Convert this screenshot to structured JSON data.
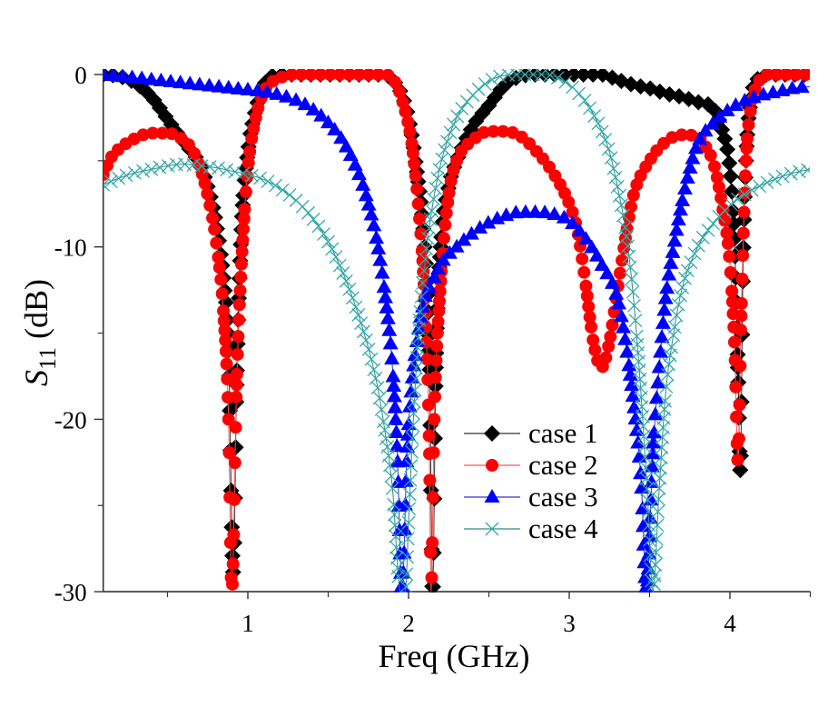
{
  "chart_data": {
    "type": "line",
    "title": "",
    "xlabel": "Freq (GHz)",
    "ylabel": {
      "base": "S",
      "subscript": "11",
      "suffix": " (dB)"
    },
    "xlim": [
      0.1,
      4.5
    ],
    "ylim": [
      -30,
      0
    ],
    "x_ticks": [
      1,
      2,
      3,
      4
    ],
    "x_minor_ticks": [
      0.5,
      1.5,
      2.5,
      3.5,
      4.5
    ],
    "y_ticks": [
      0,
      -10,
      -20,
      -30
    ],
    "y_minor_ticks": [
      -5,
      -15,
      -25
    ],
    "grid": false,
    "legend_position": "bottom-center",
    "series": [
      {
        "name": "case 1",
        "color": "#000000",
        "line_color": "#333333",
        "marker": "diamond",
        "points": [
          [
            0.1,
            0
          ],
          [
            0.2,
            -0.1
          ],
          [
            0.3,
            -0.5
          ],
          [
            0.4,
            -1.3
          ],
          [
            0.5,
            -2.6
          ],
          [
            0.6,
            -3.9
          ],
          [
            0.7,
            -5.2
          ],
          [
            0.75,
            -6.5
          ],
          [
            0.8,
            -8.5
          ],
          [
            0.85,
            -12
          ],
          [
            0.88,
            -16
          ],
          [
            0.91,
            -29
          ],
          [
            0.93,
            -18
          ],
          [
            0.96,
            -9
          ],
          [
            1.0,
            -4.5
          ],
          [
            1.05,
            -2
          ],
          [
            1.1,
            -0.6
          ],
          [
            1.2,
            0
          ],
          [
            1.85,
            0
          ],
          [
            1.9,
            -0.3
          ],
          [
            1.95,
            -1
          ],
          [
            2.0,
            -2.5
          ],
          [
            2.05,
            -5.5
          ],
          [
            2.1,
            -10
          ],
          [
            2.13,
            -16
          ],
          [
            2.15,
            -30
          ],
          [
            2.17,
            -17
          ],
          [
            2.2,
            -10
          ],
          [
            2.25,
            -6.5
          ],
          [
            2.3,
            -5
          ],
          [
            2.4,
            -3
          ],
          [
            2.5,
            -1.8
          ],
          [
            2.6,
            -0.6
          ],
          [
            2.7,
            -0.1
          ],
          [
            2.8,
            0
          ],
          [
            3.2,
            0
          ],
          [
            3.3,
            -0.3
          ],
          [
            3.4,
            -0.6
          ],
          [
            3.5,
            -0.8
          ],
          [
            3.6,
            -1.1
          ],
          [
            3.7,
            -1.3
          ],
          [
            3.8,
            -1.6
          ],
          [
            3.9,
            -2
          ],
          [
            3.95,
            -3.2
          ],
          [
            4.0,
            -5.5
          ],
          [
            4.03,
            -10
          ],
          [
            4.05,
            -17
          ],
          [
            4.065,
            -23
          ],
          [
            4.08,
            -12
          ],
          [
            4.1,
            -5
          ],
          [
            4.13,
            -1.5
          ],
          [
            4.18,
            -0.2
          ],
          [
            4.25,
            0
          ],
          [
            4.5,
            0
          ]
        ]
      },
      {
        "name": "case 2",
        "color": "#ff0000",
        "line_color": "#ff5555",
        "marker": "circle",
        "points": [
          [
            0.1,
            -5.8
          ],
          [
            0.15,
            -4.8
          ],
          [
            0.2,
            -4.3
          ],
          [
            0.3,
            -3.7
          ],
          [
            0.4,
            -3.4
          ],
          [
            0.5,
            -3.4
          ],
          [
            0.6,
            -3.8
          ],
          [
            0.65,
            -4.3
          ],
          [
            0.7,
            -5.3
          ],
          [
            0.75,
            -7
          ],
          [
            0.8,
            -9.5
          ],
          [
            0.85,
            -14
          ],
          [
            0.88,
            -20
          ],
          [
            0.9,
            -30
          ],
          [
            0.93,
            -18
          ],
          [
            0.96,
            -11
          ],
          [
            1.0,
            -5.5
          ],
          [
            1.05,
            -2.5
          ],
          [
            1.1,
            -1
          ],
          [
            1.2,
            -0.2
          ],
          [
            1.3,
            0
          ],
          [
            1.85,
            0
          ],
          [
            1.92,
            -0.5
          ],
          [
            1.97,
            -1.8
          ],
          [
            2.02,
            -4
          ],
          [
            2.06,
            -7.5
          ],
          [
            2.1,
            -13
          ],
          [
            2.13,
            -22
          ],
          [
            2.14,
            -30
          ],
          [
            2.16,
            -20
          ],
          [
            2.2,
            -12
          ],
          [
            2.25,
            -7
          ],
          [
            2.3,
            -5
          ],
          [
            2.4,
            -3.8
          ],
          [
            2.5,
            -3.3
          ],
          [
            2.6,
            -3.3
          ],
          [
            2.7,
            -3.6
          ],
          [
            2.8,
            -4.5
          ],
          [
            2.9,
            -5.7
          ],
          [
            3.0,
            -7.5
          ],
          [
            3.05,
            -9
          ],
          [
            3.1,
            -12
          ],
          [
            3.15,
            -15.5
          ],
          [
            3.2,
            -17
          ],
          [
            3.25,
            -15.5
          ],
          [
            3.3,
            -12.5
          ],
          [
            3.35,
            -9.5
          ],
          [
            3.4,
            -7
          ],
          [
            3.5,
            -5
          ],
          [
            3.6,
            -3.9
          ],
          [
            3.7,
            -3.5
          ],
          [
            3.8,
            -3.6
          ],
          [
            3.85,
            -4.2
          ],
          [
            3.9,
            -5.2
          ],
          [
            3.95,
            -7.5
          ],
          [
            4.0,
            -11
          ],
          [
            4.03,
            -16
          ],
          [
            4.05,
            -22.5
          ],
          [
            4.07,
            -14
          ],
          [
            4.1,
            -5
          ],
          [
            4.13,
            -2
          ],
          [
            4.18,
            -0.4
          ],
          [
            4.25,
            0
          ],
          [
            4.5,
            0
          ]
        ]
      },
      {
        "name": "case 3",
        "color": "#0000ff",
        "line_color": "#3333cc",
        "marker": "triangle",
        "points": [
          [
            0.1,
            0
          ],
          [
            0.3,
            -0.2
          ],
          [
            0.5,
            -0.4
          ],
          [
            0.7,
            -0.6
          ],
          [
            0.9,
            -0.8
          ],
          [
            1.1,
            -1.0
          ],
          [
            1.2,
            -1.2
          ],
          [
            1.3,
            -1.5
          ],
          [
            1.4,
            -2
          ],
          [
            1.5,
            -2.8
          ],
          [
            1.6,
            -4
          ],
          [
            1.7,
            -6
          ],
          [
            1.75,
            -7.5
          ],
          [
            1.8,
            -9.5
          ],
          [
            1.85,
            -12.5
          ],
          [
            1.9,
            -17
          ],
          [
            1.93,
            -22
          ],
          [
            1.96,
            -30
          ],
          [
            1.99,
            -22
          ],
          [
            2.02,
            -18
          ],
          [
            2.06,
            -15
          ],
          [
            2.1,
            -13
          ],
          [
            2.15,
            -12
          ],
          [
            2.2,
            -11
          ],
          [
            2.3,
            -10
          ],
          [
            2.4,
            -9.2
          ],
          [
            2.5,
            -8.6
          ],
          [
            2.6,
            -8.2
          ],
          [
            2.7,
            -8.0
          ],
          [
            2.8,
            -8.0
          ],
          [
            2.9,
            -8.1
          ],
          [
            3.0,
            -8.5
          ],
          [
            3.1,
            -9.5
          ],
          [
            3.2,
            -11
          ],
          [
            3.3,
            -13
          ],
          [
            3.35,
            -15.5
          ],
          [
            3.4,
            -19
          ],
          [
            3.45,
            -24
          ],
          [
            3.48,
            -30
          ],
          [
            3.52,
            -22
          ],
          [
            3.56,
            -17
          ],
          [
            3.6,
            -13
          ],
          [
            3.65,
            -10
          ],
          [
            3.7,
            -7.5
          ],
          [
            3.75,
            -5.5
          ],
          [
            3.8,
            -4
          ],
          [
            3.9,
            -2.8
          ],
          [
            4.0,
            -2
          ],
          [
            4.1,
            -1.5
          ],
          [
            4.2,
            -1.2
          ],
          [
            4.3,
            -1.0
          ],
          [
            4.4,
            -0.8
          ],
          [
            4.5,
            -0.7
          ]
        ]
      },
      {
        "name": "case 4",
        "color": "#33aaaa",
        "line_color": "#338888",
        "marker": "cross",
        "points": [
          [
            0.1,
            -6.4
          ],
          [
            0.2,
            -6
          ],
          [
            0.3,
            -5.7
          ],
          [
            0.4,
            -5.5
          ],
          [
            0.5,
            -5.3
          ],
          [
            0.6,
            -5.2
          ],
          [
            0.7,
            -5.3
          ],
          [
            0.8,
            -5.4
          ],
          [
            0.9,
            -5.6
          ],
          [
            1.0,
            -5.8
          ],
          [
            1.1,
            -6.1
          ],
          [
            1.2,
            -6.6
          ],
          [
            1.3,
            -7.3
          ],
          [
            1.4,
            -8.3
          ],
          [
            1.5,
            -9.7
          ],
          [
            1.6,
            -11.7
          ],
          [
            1.7,
            -14.3
          ],
          [
            1.8,
            -17.8
          ],
          [
            1.85,
            -20.5
          ],
          [
            1.9,
            -24
          ],
          [
            1.95,
            -30
          ],
          [
            1.98,
            -30
          ],
          [
            2.0,
            -26
          ],
          [
            2.03,
            -20
          ],
          [
            2.07,
            -14
          ],
          [
            2.12,
            -9.5
          ],
          [
            2.17,
            -6.5
          ],
          [
            2.22,
            -4.5
          ],
          [
            2.3,
            -2.5
          ],
          [
            2.4,
            -1.2
          ],
          [
            2.5,
            -0.4
          ],
          [
            2.6,
            -0.05
          ],
          [
            2.7,
            0
          ],
          [
            2.85,
            0
          ],
          [
            2.95,
            -0.3
          ],
          [
            3.05,
            -1
          ],
          [
            3.15,
            -2.3
          ],
          [
            3.25,
            -4.5
          ],
          [
            3.3,
            -6.5
          ],
          [
            3.35,
            -9
          ],
          [
            3.4,
            -13
          ],
          [
            3.45,
            -19
          ],
          [
            3.49,
            -25
          ],
          [
            3.52,
            -30
          ],
          [
            3.56,
            -24
          ],
          [
            3.6,
            -18.5
          ],
          [
            3.65,
            -15
          ],
          [
            3.7,
            -12.5
          ],
          [
            3.8,
            -10
          ],
          [
            3.9,
            -8.6
          ],
          [
            4.0,
            -7.6
          ],
          [
            4.1,
            -6.9
          ],
          [
            4.2,
            -6.4
          ],
          [
            4.3,
            -6.0
          ],
          [
            4.4,
            -5.7
          ],
          [
            4.5,
            -5.5
          ]
        ]
      }
    ]
  }
}
